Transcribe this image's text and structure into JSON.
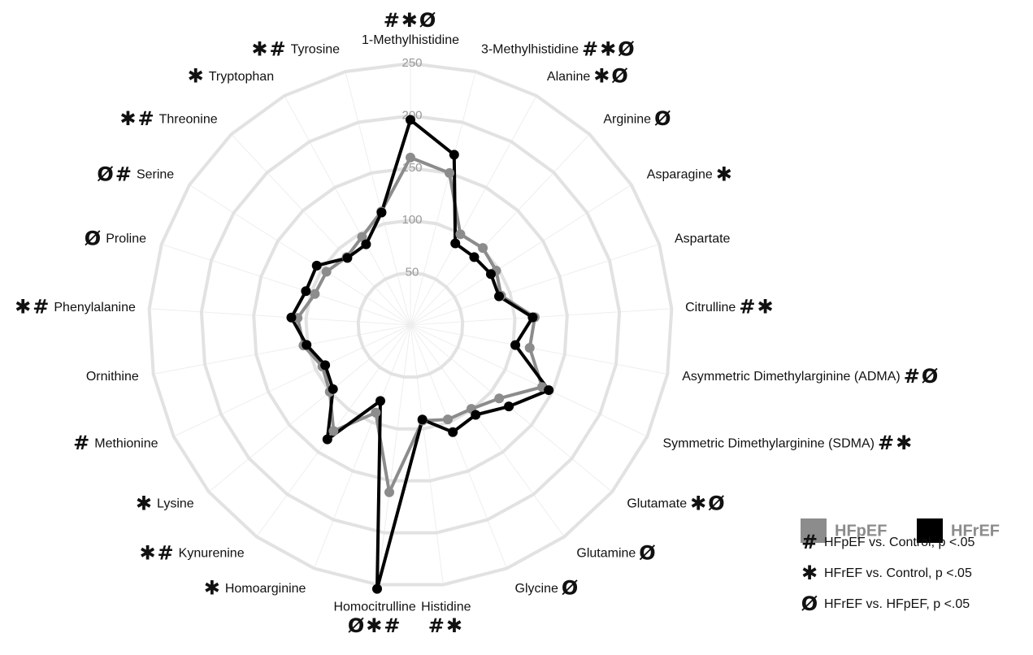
{
  "chart_data": {
    "type": "radar",
    "categories": [
      "1-Methylhistidine",
      "3-Methylhistidine",
      "Alanine",
      "Arginine",
      "Asparagine",
      "Aspartate",
      "Citrulline",
      "Asymmetric Dimethylarginine (ADMA)",
      "Symmetric Dimethylarginine (SDMA)",
      "Glutamate",
      "Glutamine",
      "Glycine",
      "Histidine",
      "Homocitrulline",
      "Homoarginine",
      "Kynurenine",
      "Lysine",
      "Methionine",
      "Ornithine",
      "Phenylalanine",
      "Proline",
      "Serine",
      "Threonine",
      "Tryptophan",
      "Tyrosine"
    ],
    "annotations": [
      "#✱Ø",
      "#✱Ø",
      "✱Ø",
      "Ø",
      "✱",
      null,
      "#✱",
      "#Ø",
      "#✱",
      "✱Ø",
      "Ø",
      "Ø",
      "#✱",
      "Ø✱#",
      "✱",
      "✱#",
      "✱",
      "#",
      null,
      "✱#",
      "Ø",
      "Ø#",
      "✱#",
      "✱",
      "✱#"
    ],
    "series": [
      {
        "name": "HFpEF",
        "color": "#8c8c8c",
        "values": [
          160,
          150,
          99,
          101,
          97,
          91,
          119,
          116,
          139,
          110,
          99,
          97,
          92,
          161,
          90,
          125,
          100,
          93,
          104,
          108,
          96,
          95,
          89,
          96,
          112
        ]
      },
      {
        "name": "HFrEF",
        "color": "#000000",
        "values": [
          196,
          168,
          89,
          89,
          91,
          89,
          117,
          102,
          146,
          122,
          106,
          110,
          91,
          254,
          78,
          135,
          96,
          90,
          101,
          114,
          105,
          106,
          88,
          88,
          111
        ]
      }
    ],
    "rlim": [
      0,
      250
    ],
    "rticks": [
      50,
      100,
      150,
      200,
      250
    ],
    "legend_notes": [
      {
        "symbol": "#",
        "text": "HFpEF vs. Control, p <.05"
      },
      {
        "symbol": "✱",
        "text": "HFrEF vs. Control, p <.05"
      },
      {
        "symbol": "Ø",
        "text": "HFrEF vs. HFpEF, p <.05"
      }
    ]
  }
}
